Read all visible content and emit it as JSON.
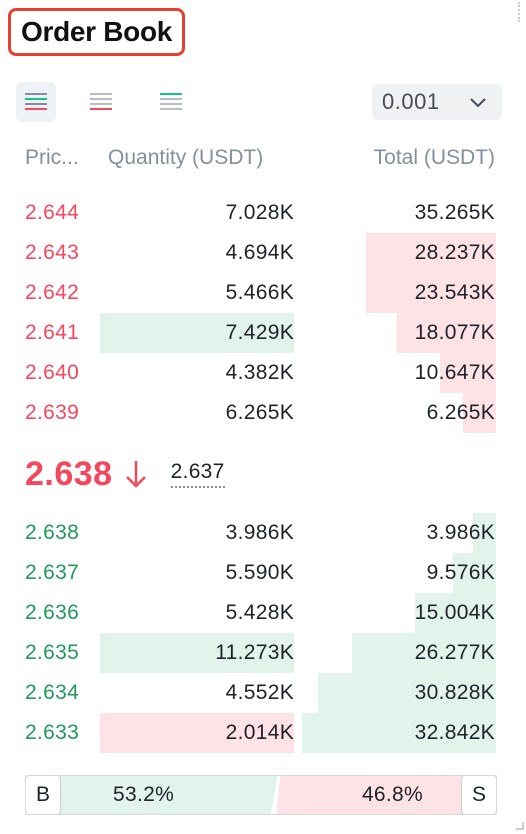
{
  "header": {
    "title": "Order Book"
  },
  "toolbar": {
    "views": [
      {
        "icon": "both-sides-view-icon",
        "active": true
      },
      {
        "icon": "asks-only-view-icon",
        "active": false
      },
      {
        "icon": "bids-only-view-icon",
        "active": false
      }
    ],
    "precision": {
      "value": "0.001",
      "icon": "chevron-down-icon"
    }
  },
  "columns": {
    "price": "Pric...",
    "quantity": "Quantity (USDT)",
    "total": "Total (USDT)"
  },
  "asks": [
    {
      "price": "2.644",
      "quantity": "7.028K",
      "total": "35.265K",
      "depth": 1.0,
      "highlight": ""
    },
    {
      "price": "2.643",
      "quantity": "4.694K",
      "total": "28.237K",
      "depth": 0.33,
      "highlight": ""
    },
    {
      "price": "2.642",
      "quantity": "5.466K",
      "total": "23.543K",
      "depth": 0.33,
      "highlight": ""
    },
    {
      "price": "2.641",
      "quantity": "7.429K",
      "total": "18.077K",
      "depth": 0.49,
      "highlight": "green"
    },
    {
      "price": "2.640",
      "quantity": "4.382K",
      "total": "10.647K",
      "depth": 0.71,
      "highlight": ""
    },
    {
      "price": "2.639",
      "quantity": "6.265K",
      "total": "6.265K",
      "depth": 0.83,
      "highlight": ""
    }
  ],
  "mid": {
    "price": "2.638",
    "direction": "down",
    "mark_price": "2.637"
  },
  "bids": [
    {
      "price": "2.638",
      "quantity": "3.986K",
      "total": "3.986K",
      "depth": 0.88,
      "highlight": ""
    },
    {
      "price": "2.637",
      "quantity": "5.590K",
      "total": "9.576K",
      "depth": 0.78,
      "highlight": ""
    },
    {
      "price": "2.636",
      "quantity": "5.428K",
      "total": "15.004K",
      "depth": 0.58,
      "highlight": ""
    },
    {
      "price": "2.635",
      "quantity": "11.273K",
      "total": "26.277K",
      "depth": 0.26,
      "highlight": "green"
    },
    {
      "price": "2.634",
      "quantity": "4.552K",
      "total": "30.828K",
      "depth": 0.08,
      "highlight": ""
    },
    {
      "price": "2.633",
      "quantity": "2.014K",
      "total": "32.842K",
      "depth": 0.0,
      "highlight": "red"
    }
  ],
  "ratio": {
    "buy_label": "B",
    "buy_pct": "53.2%",
    "sell_pct": "46.8%",
    "sell_label": "S",
    "buy_fraction": 0.532
  },
  "colors": {
    "ask": "#f6465d",
    "bid": "#1f9a5c",
    "ask_bg": "#fde3e6",
    "bid_bg": "#e1f3ea",
    "title_outline": "#e8402f"
  }
}
